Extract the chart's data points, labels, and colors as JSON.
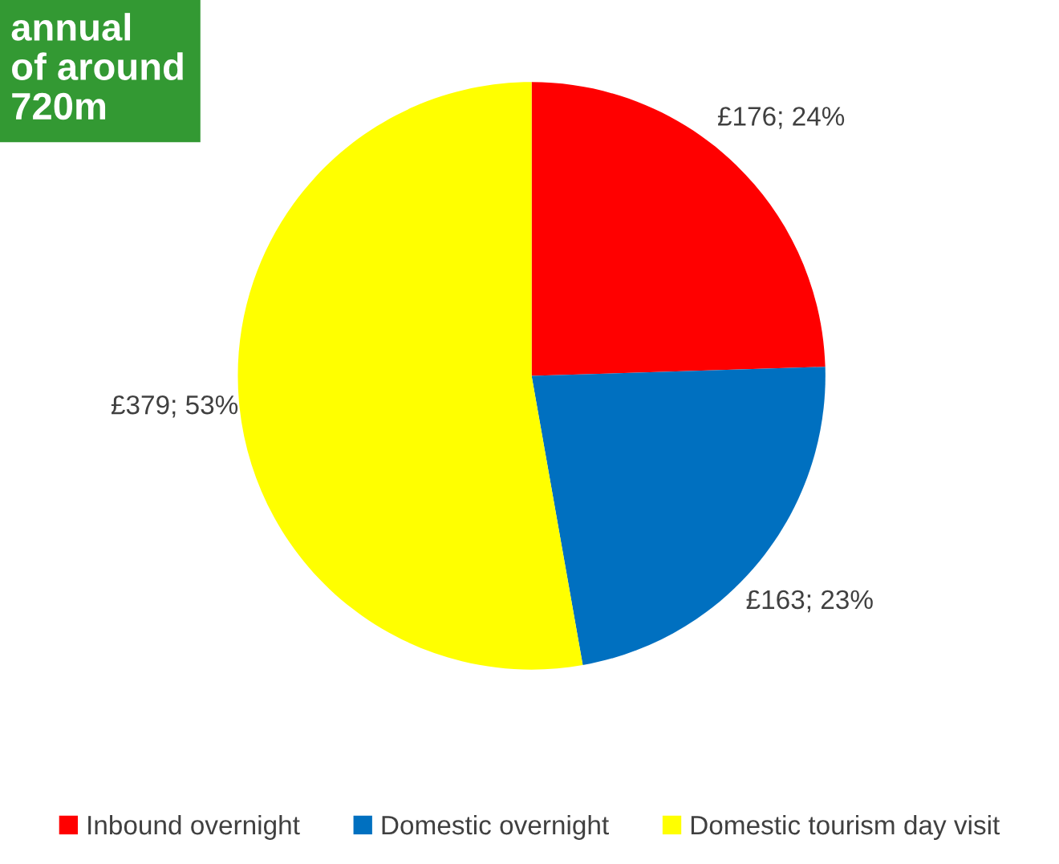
{
  "chart_data": {
    "type": "pie",
    "categories": [
      "Inbound overnight",
      "Domestic overnight",
      "Domestic tourism day visit"
    ],
    "values": [
      176,
      163,
      379
    ],
    "colors": [
      "#ff0000",
      "#0070c0",
      "#ffff00"
    ],
    "value_labels": [
      "£176; 24%",
      "£163; 23%",
      "£379; 53%"
    ],
    "annotations": [
      "annual\nof around\n720m"
    ],
    "legend": "bottom"
  }
}
